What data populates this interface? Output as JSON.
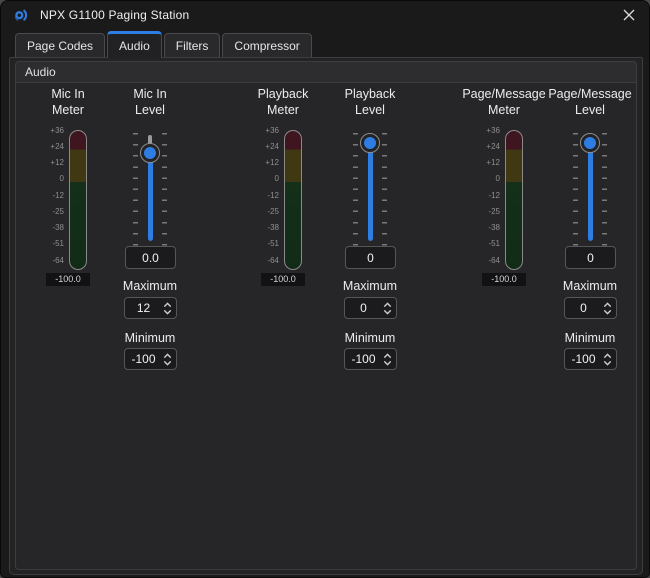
{
  "window": {
    "title": "NPX G1100 Paging Station"
  },
  "tabs": [
    {
      "id": "page-codes",
      "label": "Page Codes",
      "selected": false
    },
    {
      "id": "audio",
      "label": "Audio",
      "selected": true
    },
    {
      "id": "filters",
      "label": "Filters",
      "selected": false
    },
    {
      "id": "compressor",
      "label": "Compressor",
      "selected": false
    }
  ],
  "group": {
    "title": "Audio"
  },
  "meter_scale": [
    "+36",
    "+24",
    "+12",
    "0",
    "-12",
    "-25",
    "-38",
    "-51",
    "-64"
  ],
  "meters": [
    {
      "title1": "Mic In",
      "title2": "Meter",
      "value": "-100.0"
    },
    {
      "title1": "Playback",
      "title2": "Meter",
      "value": "-100.0"
    },
    {
      "title1": "Page/Message",
      "title2": "Meter",
      "value": "-100.0"
    }
  ],
  "sliders": [
    {
      "title1": "Mic In",
      "title2": "Level",
      "value": "0.0",
      "max_label": "Maximum",
      "maximum": "12",
      "min_label": "Minimum",
      "minimum": "-100"
    },
    {
      "title1": "Playback",
      "title2": "Level",
      "value": "0",
      "max_label": "Maximum",
      "maximum": "0",
      "min_label": "Minimum",
      "minimum": "-100"
    },
    {
      "title1": "Page/Message",
      "title2": "Level",
      "value": "0",
      "max_label": "Maximum",
      "maximum": "0",
      "min_label": "Minimum",
      "minimum": "-100"
    }
  ],
  "colors": {
    "accent": "#2e7de2",
    "meter_red": "#3f1520",
    "meter_yellow": "#403813",
    "meter_green": "#143019"
  }
}
